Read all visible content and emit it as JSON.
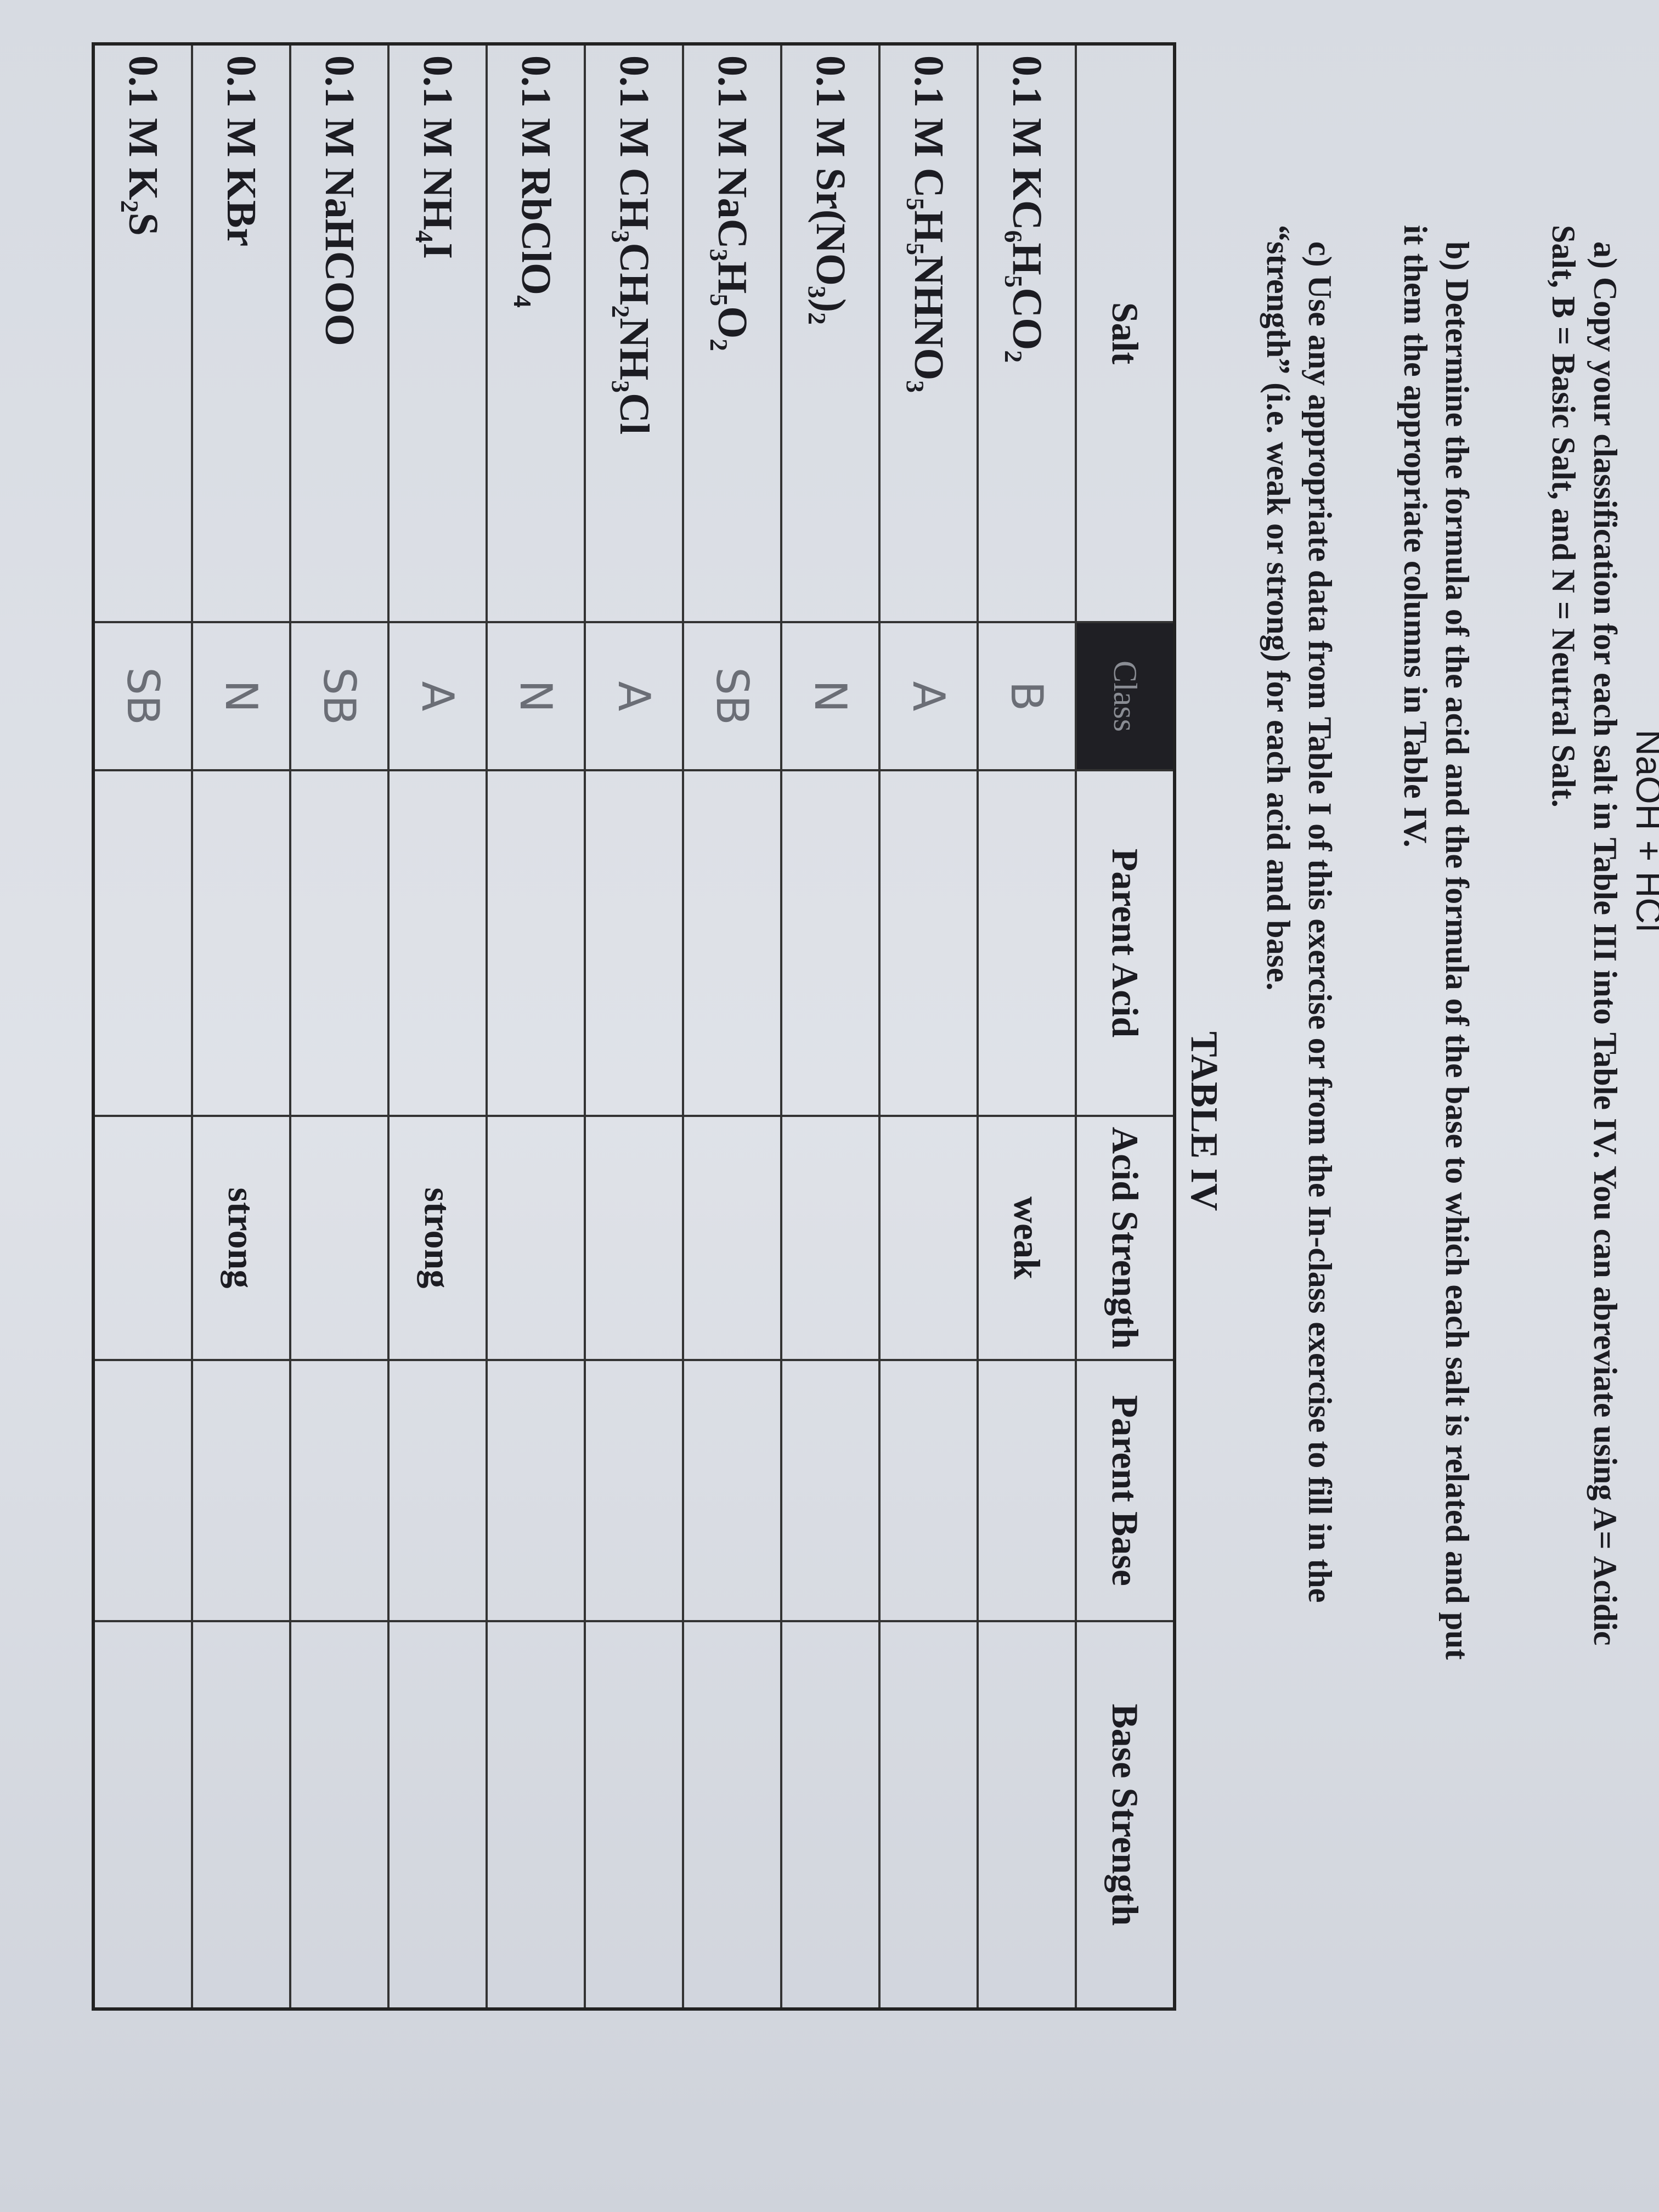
{
  "header": {
    "equation": "NaOH + HCl"
  },
  "instructions": [
    "a) Copy your classification for each salt in Table III into Table IV. You can abreviate using A= Acidic Salt, B = Basic Salt, and N = Neutral Salt.",
    "b) Determine the formula of the acid and the formula of the base to which each salt is related and put it them the appropriate columns in Table IV.",
    "c) Use any appropriate data from Table I of this exercise or from the In-class exercise to fill in the “strength” (i.e. weak or strong) for each acid and base."
  ],
  "table": {
    "title": "TABLE IV",
    "columns": [
      "Salt",
      "Class",
      "Parent Acid",
      "Acid Strength",
      "Parent Base",
      "Base Strength"
    ],
    "rows": [
      {
        "salt": "0.1 M KC₆H₅CO₂",
        "class": "B",
        "acid_strength": "weak"
      },
      {
        "salt": "0.1 M C₅H₅NHNO₃",
        "class": "A"
      },
      {
        "salt": "0.1 M Sr(NO₃)₂",
        "class": "N"
      },
      {
        "salt": "0.1 M NaC₃H₅O₂",
        "class": "SB"
      },
      {
        "salt": "0.1 M CH₃CH₂NH₃Cl",
        "class": "A"
      },
      {
        "salt": "0.1 M RbClO₄",
        "class": "N"
      },
      {
        "salt": "0.1 M NH₄I",
        "class": "A",
        "acid_strength": "strong"
      },
      {
        "salt": "0.1 M NaHCOO",
        "class": "SB"
      },
      {
        "salt": "0.1 M KBr",
        "class": "N",
        "acid_strength": "strong"
      },
      {
        "salt": "0.1 M K₂S",
        "class": "SB"
      }
    ]
  }
}
